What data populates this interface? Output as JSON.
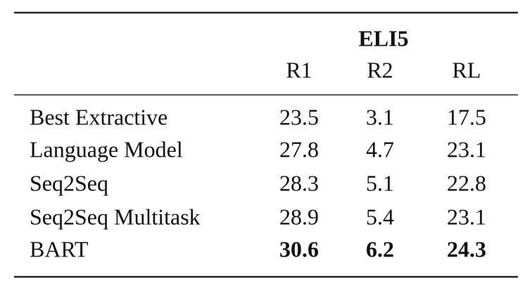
{
  "table": {
    "group_header": "ELI5",
    "columns": [
      "R1",
      "R2",
      "RL"
    ],
    "rows": [
      [
        "Best Extractive",
        23.5,
        3.1,
        17.5
      ],
      [
        "Language Model",
        27.8,
        4.7,
        23.1
      ],
      [
        "Seq2Seq",
        28.3,
        5.1,
        22.8
      ],
      [
        "Seq2Seq Multitask",
        28.9,
        5.4,
        23.1
      ],
      [
        "BART",
        30.6,
        6.2,
        24.3
      ]
    ]
  }
}
